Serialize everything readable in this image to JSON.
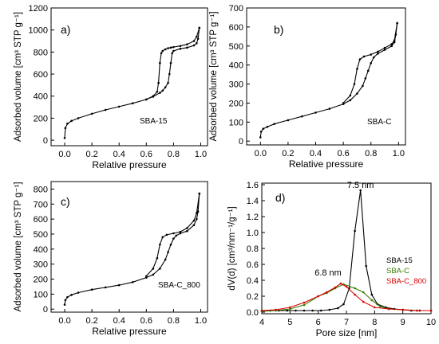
{
  "chart_data": [
    {
      "id": "a",
      "type": "line",
      "panel_label": "a)",
      "sample_label": "SBA-15",
      "xlabel": "Relative pressure",
      "ylabel": "Adsorbed volume [cm³ STP g⁻¹]",
      "xlim": [
        -0.1,
        1.05
      ],
      "ylim": [
        -50,
        1200
      ],
      "xticks": [
        "0.0",
        "0.2",
        "0.4",
        "0.6",
        "0.8",
        "1.0"
      ],
      "yticks": [
        "0",
        "200",
        "400",
        "600",
        "800",
        "1000",
        "1200"
      ],
      "series": [
        {
          "role": "adsorption",
          "x": [
            0.0,
            0.005,
            0.02,
            0.05,
            0.1,
            0.2,
            0.3,
            0.4,
            0.5,
            0.6,
            0.65,
            0.7,
            0.72,
            0.74,
            0.76,
            0.77,
            0.78,
            0.79,
            0.8,
            0.85,
            0.9,
            0.95,
            0.97,
            0.98,
            0.99
          ],
          "y": [
            20,
            110,
            150,
            175,
            200,
            240,
            275,
            305,
            335,
            370,
            395,
            430,
            450,
            480,
            520,
            600,
            700,
            790,
            810,
            830,
            840,
            860,
            880,
            920,
            1020
          ]
        },
        {
          "role": "desorption",
          "x": [
            0.99,
            0.97,
            0.95,
            0.9,
            0.85,
            0.8,
            0.78,
            0.76,
            0.74,
            0.72,
            0.71,
            0.7,
            0.69,
            0.68,
            0.65,
            0.6
          ],
          "y": [
            1020,
            940,
            900,
            870,
            855,
            845,
            840,
            835,
            825,
            810,
            790,
            700,
            520,
            440,
            400,
            370
          ]
        }
      ]
    },
    {
      "id": "b",
      "type": "line",
      "panel_label": "b)",
      "sample_label": "SBA-C",
      "xlabel": "Relative pressure",
      "ylabel": "Adsorbed volume [cm³ STP g⁻¹]",
      "xlim": [
        -0.1,
        1.05
      ],
      "ylim": [
        -20,
        700
      ],
      "xticks": [
        "0.0",
        "0.2",
        "0.4",
        "0.6",
        "0.8",
        "1.0"
      ],
      "yticks": [
        "0",
        "100",
        "200",
        "300",
        "400",
        "500",
        "600",
        "700"
      ],
      "series": [
        {
          "role": "adsorption",
          "x": [
            0.0,
            0.005,
            0.02,
            0.05,
            0.1,
            0.2,
            0.3,
            0.4,
            0.5,
            0.6,
            0.65,
            0.7,
            0.74,
            0.76,
            0.78,
            0.8,
            0.82,
            0.85,
            0.9,
            0.95,
            0.97,
            0.98,
            0.99
          ],
          "y": [
            20,
            50,
            65,
            75,
            90,
            110,
            130,
            150,
            170,
            195,
            215,
            250,
            290,
            330,
            370,
            410,
            440,
            460,
            480,
            500,
            520,
            560,
            620
          ]
        },
        {
          "role": "desorption",
          "x": [
            0.99,
            0.97,
            0.95,
            0.9,
            0.85,
            0.8,
            0.75,
            0.72,
            0.7,
            0.68,
            0.65,
            0.6
          ],
          "y": [
            620,
            530,
            510,
            490,
            470,
            455,
            445,
            430,
            380,
            300,
            240,
            200
          ]
        }
      ]
    },
    {
      "id": "c",
      "type": "line",
      "panel_label": "c)",
      "sample_label": "SBA-C_800",
      "xlabel": "Relative pressure",
      "ylabel": "Adsorbed volume [cm³ STP g⁻¹]",
      "xlim": [
        -0.1,
        1.05
      ],
      "ylim": [
        -20,
        850
      ],
      "xticks": [
        "0.0",
        "0.2",
        "0.4",
        "0.6",
        "0.8",
        "1.0"
      ],
      "yticks": [
        "0",
        "100",
        "200",
        "300",
        "400",
        "500",
        "600",
        "700",
        "800"
      ],
      "series": [
        {
          "role": "adsorption",
          "x": [
            0.0,
            0.005,
            0.02,
            0.05,
            0.1,
            0.2,
            0.3,
            0.4,
            0.5,
            0.6,
            0.65,
            0.7,
            0.74,
            0.76,
            0.78,
            0.8,
            0.82,
            0.85,
            0.9,
            0.95,
            0.97,
            0.98,
            0.99
          ],
          "y": [
            30,
            60,
            80,
            95,
            110,
            130,
            145,
            160,
            180,
            210,
            230,
            270,
            330,
            380,
            430,
            470,
            490,
            505,
            520,
            560,
            600,
            650,
            770
          ]
        },
        {
          "role": "desorption",
          "x": [
            0.99,
            0.97,
            0.95,
            0.9,
            0.85,
            0.8,
            0.75,
            0.72,
            0.7,
            0.68,
            0.65,
            0.6
          ],
          "y": [
            770,
            640,
            590,
            540,
            515,
            505,
            495,
            480,
            430,
            340,
            270,
            220
          ]
        }
      ]
    },
    {
      "id": "d",
      "type": "line",
      "panel_label": "d)",
      "xlabel": "Pore size [nm]",
      "ylabel": "dV(d) [cm³/nm⁻¹/g⁻¹]",
      "xlim": [
        4,
        10
      ],
      "ylim": [
        -0.02,
        1.62
      ],
      "xticks": [
        "4",
        "5",
        "6",
        "7",
        "8",
        "9",
        "10"
      ],
      "yticks": [
        "0.0",
        "0.2",
        "0.4",
        "0.6",
        "0.8",
        "1.0",
        "1.2",
        "1.4",
        "1.6"
      ],
      "annotations": [
        {
          "text": "7.5 nm",
          "x": 7.5,
          "y": 1.6
        },
        {
          "text": "6.8 nm",
          "x": 6.35,
          "y": 0.5
        }
      ],
      "legend": {
        "placement": "right"
      },
      "series": [
        {
          "name": "SBA-15",
          "color": "#000000",
          "x": [
            4.0,
            4.3,
            4.6,
            4.9,
            5.2,
            5.5,
            5.8,
            6.1,
            6.4,
            6.7,
            6.9,
            7.1,
            7.3,
            7.5,
            7.7,
            7.9,
            8.1,
            8.4,
            8.7,
            9.0,
            9.3,
            9.6,
            10.0
          ],
          "values": [
            0.02,
            0.02,
            0.02,
            0.02,
            0.02,
            0.02,
            0.02,
            0.02,
            0.03,
            0.05,
            0.1,
            0.3,
            1.02,
            1.53,
            0.58,
            0.22,
            0.1,
            0.06,
            0.04,
            0.03,
            0.02,
            0.02,
            0.02
          ]
        },
        {
          "name": "SBA-C",
          "color": "#3a7a00",
          "x": [
            4.0,
            4.5,
            5.0,
            5.5,
            6.0,
            6.3,
            6.6,
            6.9,
            7.3,
            7.6,
            7.9,
            8.2,
            8.5,
            9.0,
            9.5,
            10.0
          ],
          "values": [
            0.01,
            0.02,
            0.04,
            0.09,
            0.2,
            0.24,
            0.3,
            0.35,
            0.3,
            0.25,
            0.15,
            0.07,
            0.04,
            0.03,
            0.02,
            0.02
          ]
        },
        {
          "name": "SBA-C_800",
          "color": "#d90000",
          "x": [
            4.0,
            4.5,
            5.0,
            5.5,
            6.0,
            6.3,
            6.6,
            6.8,
            7.0,
            7.3,
            7.6,
            8.0,
            8.5,
            9.0,
            9.5,
            10.0
          ],
          "values": [
            0.02,
            0.03,
            0.06,
            0.12,
            0.2,
            0.25,
            0.31,
            0.36,
            0.32,
            0.22,
            0.13,
            0.06,
            0.04,
            0.03,
            0.02,
            0.02
          ]
        }
      ]
    }
  ]
}
